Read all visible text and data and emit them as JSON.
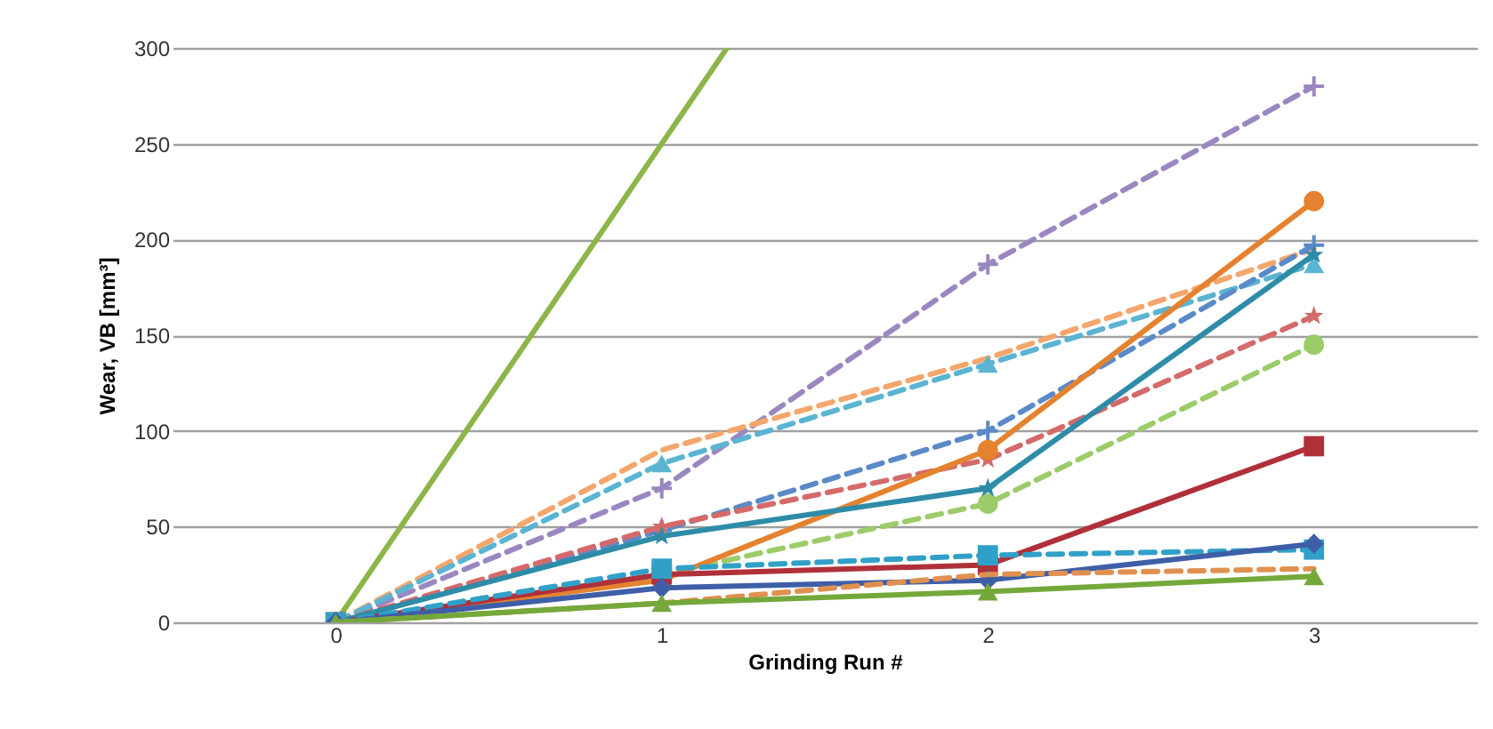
{
  "chart_data": {
    "type": "line",
    "xlabel": "Grinding Run #",
    "ylabel": "Wear, VB [mm³]",
    "x": [
      0,
      1,
      2,
      3
    ],
    "xlim": [
      -0.5,
      3.5
    ],
    "xticks": [
      0,
      1,
      2,
      3
    ],
    "ylim": [
      0,
      300
    ],
    "yticks": [
      0,
      50,
      100,
      150,
      200,
      250,
      300
    ],
    "grid": "y",
    "legend": false,
    "series": [
      {
        "color": "#8db54a",
        "x": [
          0,
          1,
          1.2
        ],
        "values": [
          0,
          250,
          300
        ],
        "line_style": "solid",
        "marker": "none"
      },
      {
        "color": "#9b87c0",
        "values": [
          0,
          70,
          187,
          280
        ],
        "line_style": "dashed",
        "marker": "cross"
      },
      {
        "color": "#f4a66c",
        "values": [
          0,
          90,
          138,
          195
        ],
        "line_style": "dashed",
        "marker": "none"
      },
      {
        "color": "#5ab4d2",
        "values": [
          0,
          83,
          135,
          187
        ],
        "line_style": "dashed",
        "marker": "triangle"
      },
      {
        "color": "#5a8ac8",
        "values": [
          0,
          48,
          100,
          197
        ],
        "line_style": "dashed",
        "marker": "cross"
      },
      {
        "color": "#d46a6a",
        "values": [
          0,
          50,
          85,
          160
        ],
        "line_style": "dashed",
        "marker": "star"
      },
      {
        "color": "#9ccc6a",
        "values": [
          0,
          25,
          62,
          145
        ],
        "line_style": "dashed",
        "marker": "circle"
      },
      {
        "color": "#e4822f",
        "values": [
          0,
          22,
          90,
          220
        ],
        "line_style": "solid",
        "marker": "circle"
      },
      {
        "color": "#2e8ca8",
        "values": [
          0,
          45,
          70,
          192
        ],
        "line_style": "solid",
        "marker": "star"
      },
      {
        "color": "#b0303a",
        "values": [
          0,
          25,
          30,
          92
        ],
        "line_style": "solid",
        "marker": "square"
      },
      {
        "color": "#31a0c8",
        "values": [
          0,
          28,
          35,
          38
        ],
        "line_style": "dashed",
        "marker": "square"
      },
      {
        "color": "#3e5fa8",
        "values": [
          0,
          18,
          22,
          41
        ],
        "line_style": "solid",
        "marker": "diamond"
      },
      {
        "color": "#e09050",
        "values": [
          0,
          10,
          25,
          28
        ],
        "line_style": "dashed",
        "marker": "none"
      },
      {
        "color": "#74a83b",
        "values": [
          0,
          10,
          16,
          24
        ],
        "line_style": "solid",
        "marker": "triangle"
      }
    ]
  }
}
